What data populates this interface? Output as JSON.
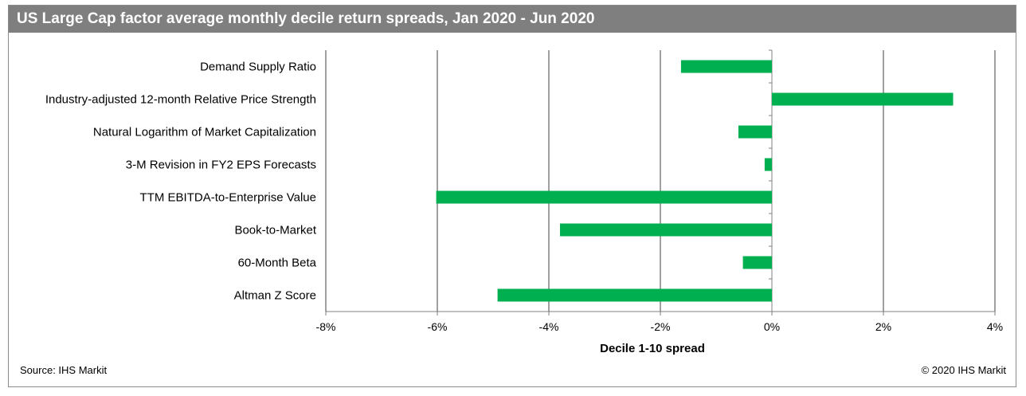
{
  "title": "US Large Cap factor average monthly decile return spreads, Jan 2020 - Jun 2020",
  "source": "Source: IHS Markit",
  "copyright": "© 2020 IHS Markit",
  "colors": {
    "bar": "#00b050",
    "title_bg": "#7f7f7f",
    "gridline": "#808080"
  },
  "chart_data": {
    "type": "bar",
    "orientation": "horizontal",
    "categories": [
      "Demand Supply Ratio",
      "Industry-adjusted 12-month Relative Price Strength",
      "Natural Logarithm of Market Capitalization",
      "3-M Revision in  FY2 EPS Forecasts",
      "TTM EBITDA-to-Enterprise Value",
      "Book-to-Market",
      "60-Month Beta",
      "Altman Z Score"
    ],
    "values": [
      -1.63,
      3.25,
      -0.6,
      -0.13,
      -6.02,
      -3.8,
      -0.52,
      -4.92
    ],
    "xlabel": "Decile 1-10 spread",
    "ylabel": "",
    "xlim": [
      -8,
      4
    ],
    "xticks": [
      -8,
      -6,
      -4,
      -2,
      0,
      2,
      4
    ],
    "xtick_labels": [
      "-8%",
      "-6%",
      "-4%",
      "-2%",
      "0%",
      "2%",
      "4%"
    ],
    "grid": "vertical",
    "legend": "none"
  }
}
